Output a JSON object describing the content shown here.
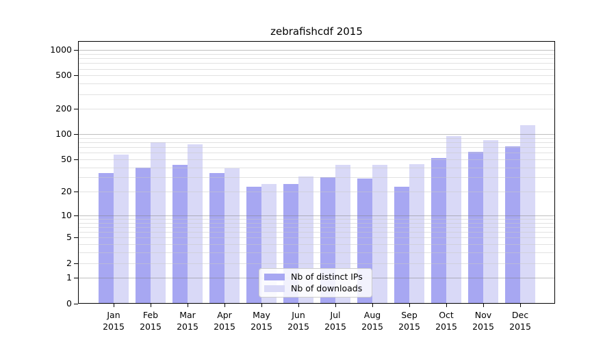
{
  "chart_data": {
    "type": "bar",
    "title": "zebrafishcdf 2015",
    "y_scale": "log10(value+1)",
    "categories": [
      "Jan",
      "Feb",
      "Mar",
      "Apr",
      "May",
      "Jun",
      "Jul",
      "Aug",
      "Sep",
      "Oct",
      "Nov",
      "Dec"
    ],
    "year_label": "2015",
    "series": [
      {
        "name": "Nb of distinct IPs",
        "color": "#a7a7f2",
        "values": [
          34,
          40,
          43,
          34,
          23,
          25,
          30,
          29,
          23,
          52,
          61,
          71
        ]
      },
      {
        "name": "Nb of downloads",
        "color": "#d9d9f7",
        "values": [
          57,
          80,
          75,
          39,
          25,
          31,
          43,
          43,
          44,
          94,
          84,
          129
        ]
      }
    ],
    "yticks": [
      0,
      1,
      2,
      5,
      10,
      20,
      50,
      100,
      200,
      500,
      1000
    ],
    "ylim": [
      0,
      1000
    ],
    "grid": true,
    "grid_minor_multiples": [
      2,
      3,
      4,
      5,
      6,
      7,
      8,
      9
    ],
    "grid_major_lines": [
      1,
      10,
      100,
      1000
    ],
    "legend_position": "lower-center"
  },
  "colors": {
    "background": "#ffffff",
    "bar_distinct_ips": "#a7a7f2",
    "bar_downloads": "#d9d9f7",
    "grid_minor": "#c8c8c8",
    "grid_major": "#808080",
    "axis": "#000000",
    "legend_border": "#cccccc"
  }
}
